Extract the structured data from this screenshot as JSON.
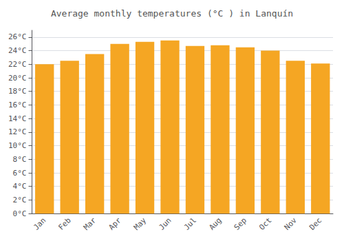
{
  "chart_data": {
    "type": "bar",
    "title": "Average monthly temperatures (°C ) in Lanquín",
    "categories": [
      "Jan",
      "Feb",
      "Mar",
      "Apr",
      "May",
      "Jun",
      "Jul",
      "Aug",
      "Sep",
      "Oct",
      "Nov",
      "Dec"
    ],
    "values": [
      22.0,
      22.5,
      23.5,
      25.0,
      25.3,
      25.5,
      24.7,
      24.8,
      24.5,
      24.0,
      22.5,
      22.1
    ],
    "color": "#F5A623",
    "ylim": [
      0,
      27
    ],
    "yticks": [
      {
        "value": 0,
        "label": "0°C"
      },
      {
        "value": 2,
        "label": "2°C"
      },
      {
        "value": 4,
        "label": "4°C"
      },
      {
        "value": 6,
        "label": "6°C"
      },
      {
        "value": 8,
        "label": "8°C"
      },
      {
        "value": 10,
        "label": "10°C"
      },
      {
        "value": 12,
        "label": "12°C"
      },
      {
        "value": 14,
        "label": "14°C"
      },
      {
        "value": 16,
        "label": "16°C"
      },
      {
        "value": 18,
        "label": "18°C"
      },
      {
        "value": 20,
        "label": "20°C"
      },
      {
        "value": 22,
        "label": "22°C"
      },
      {
        "value": 24,
        "label": "24°C"
      },
      {
        "value": 26,
        "label": "26°C"
      }
    ],
    "grid": true
  }
}
